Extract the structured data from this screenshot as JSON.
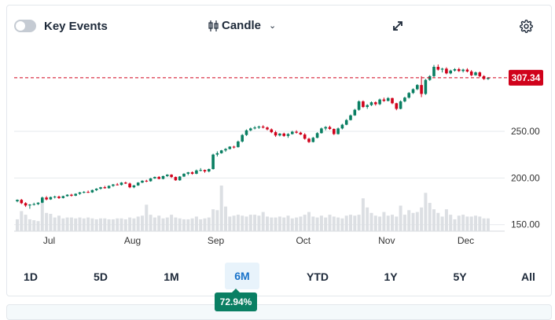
{
  "toolbar": {
    "key_events_label": "Key Events",
    "chart_type_label": "Candle",
    "expand_icon": "expand-icon",
    "settings_icon": "gear-icon"
  },
  "ranges": [
    "1D",
    "5D",
    "1M",
    "6M",
    "YTD",
    "1Y",
    "5Y",
    "All"
  ],
  "active_range": "6M",
  "change_badge": "72.94%",
  "colors": {
    "up": "#0a7f63",
    "down": "#d0021b",
    "grid": "#e6e9ed",
    "volume": "#dcdfe3",
    "price_line": "#d0021b"
  },
  "chart_data": {
    "type": "candlestick",
    "title": "",
    "current_price": 307.34,
    "current_price_label": "307.34",
    "y_ticks": [
      150,
      200,
      250
    ],
    "y_tick_labels": [
      "150.00",
      "200.00",
      "250.00"
    ],
    "ylim": [
      143,
      335
    ],
    "x_labels": [
      "Jul",
      "Aug",
      "Sep",
      "Oct",
      "Nov",
      "Dec"
    ],
    "x_label_positions": [
      5,
      25,
      45,
      66,
      86,
      105
    ],
    "candles": [
      [
        175.0,
        177.0,
        174.0,
        176.5
      ],
      [
        176.5,
        177.5,
        172.0,
        173.0
      ],
      [
        173.0,
        174.0,
        169.0,
        170.5
      ],
      [
        170.5,
        172.0,
        167.0,
        171.5
      ],
      [
        171.5,
        173.5,
        170.5,
        172.0
      ],
      [
        172.0,
        174.0,
        171.0,
        173.5
      ],
      [
        173.5,
        180.0,
        173.0,
        179.0
      ],
      [
        179.0,
        180.5,
        176.0,
        177.0
      ],
      [
        177.0,
        180.0,
        176.5,
        179.5
      ],
      [
        179.5,
        181.0,
        178.0,
        180.0
      ],
      [
        180.0,
        181.0,
        177.5,
        178.5
      ],
      [
        178.5,
        181.0,
        178.0,
        180.5
      ],
      [
        180.5,
        182.5,
        180.0,
        182.0
      ],
      [
        182.0,
        183.0,
        180.0,
        181.0
      ],
      [
        181.0,
        183.5,
        180.5,
        183.0
      ],
      [
        183.0,
        185.0,
        182.0,
        184.5
      ],
      [
        184.5,
        186.0,
        183.5,
        185.0
      ],
      [
        185.0,
        186.5,
        184.0,
        184.5
      ],
      [
        184.5,
        187.5,
        184.0,
        187.0
      ],
      [
        187.0,
        189.0,
        186.0,
        188.5
      ],
      [
        188.5,
        190.5,
        187.5,
        190.0
      ],
      [
        190.0,
        191.5,
        188.5,
        189.0
      ],
      [
        189.0,
        192.0,
        188.5,
        191.5
      ],
      [
        191.5,
        193.5,
        190.5,
        193.0
      ],
      [
        193.0,
        194.5,
        192.0,
        192.5
      ],
      [
        192.5,
        195.5,
        192.0,
        195.0
      ],
      [
        195.0,
        196.0,
        193.5,
        194.0
      ],
      [
        194.0,
        195.0,
        189.0,
        190.0
      ],
      [
        190.0,
        192.5,
        189.0,
        192.0
      ],
      [
        192.0,
        195.5,
        191.5,
        195.0
      ],
      [
        195.0,
        197.5,
        194.5,
        197.0
      ],
      [
        197.0,
        198.0,
        195.5,
        196.5
      ],
      [
        196.5,
        200.0,
        196.0,
        199.5
      ],
      [
        199.5,
        201.5,
        199.0,
        201.0
      ],
      [
        201.0,
        202.0,
        198.5,
        199.0
      ],
      [
        199.0,
        202.5,
        198.5,
        202.0
      ],
      [
        202.0,
        204.0,
        201.0,
        203.5
      ],
      [
        203.5,
        204.0,
        200.0,
        201.0
      ],
      [
        201.0,
        201.5,
        197.0,
        197.5
      ],
      [
        197.5,
        202.0,
        197.0,
        201.5
      ],
      [
        201.5,
        205.0,
        201.0,
        204.5
      ],
      [
        204.5,
        206.5,
        203.0,
        206.0
      ],
      [
        206.0,
        207.0,
        203.5,
        204.5
      ],
      [
        204.5,
        209.0,
        204.0,
        208.0
      ],
      [
        208.0,
        210.5,
        207.0,
        208.5
      ],
      [
        208.5,
        209.0,
        205.5,
        207.0
      ],
      [
        207.0,
        210.0,
        206.0,
        209.5
      ],
      [
        209.5,
        226.0,
        209.0,
        225.0
      ],
      [
        225.0,
        228.5,
        223.0,
        226.5
      ],
      [
        226.5,
        230.0,
        226.0,
        229.5
      ],
      [
        229.5,
        232.0,
        228.0,
        231.0
      ],
      [
        231.0,
        234.0,
        230.5,
        233.5
      ],
      [
        233.5,
        234.5,
        231.5,
        233.0
      ],
      [
        233.0,
        240.0,
        232.5,
        239.0
      ],
      [
        239.0,
        247.0,
        238.0,
        246.0
      ],
      [
        246.0,
        252.0,
        245.0,
        251.0
      ],
      [
        251.0,
        254.0,
        250.0,
        253.0
      ],
      [
        253.0,
        255.5,
        252.0,
        254.0
      ],
      [
        254.0,
        256.0,
        252.5,
        255.0
      ],
      [
        255.0,
        256.5,
        253.0,
        254.0
      ],
      [
        254.0,
        255.0,
        251.0,
        252.0
      ],
      [
        252.0,
        253.0,
        248.0,
        249.0
      ],
      [
        249.0,
        250.5,
        244.0,
        245.5
      ],
      [
        245.5,
        248.0,
        244.5,
        247.5
      ],
      [
        247.5,
        248.5,
        244.0,
        245.0
      ],
      [
        245.0,
        248.0,
        243.0,
        247.0
      ],
      [
        247.0,
        250.5,
        246.5,
        249.5
      ],
      [
        249.5,
        251.0,
        247.5,
        248.5
      ],
      [
        248.5,
        249.5,
        246.0,
        246.5
      ],
      [
        246.5,
        248.0,
        241.0,
        242.0
      ],
      [
        242.0,
        243.0,
        237.5,
        238.5
      ],
      [
        238.5,
        244.0,
        238.0,
        243.0
      ],
      [
        243.0,
        249.0,
        242.5,
        248.0
      ],
      [
        248.0,
        254.0,
        247.5,
        253.0
      ],
      [
        253.0,
        255.5,
        251.0,
        254.5
      ],
      [
        254.5,
        256.0,
        251.5,
        252.5
      ],
      [
        252.5,
        253.0,
        246.0,
        247.0
      ],
      [
        247.0,
        254.0,
        246.5,
        253.0
      ],
      [
        253.0,
        258.0,
        252.0,
        257.0
      ],
      [
        257.0,
        263.0,
        256.5,
        262.0
      ],
      [
        262.0,
        268.0,
        261.5,
        267.0
      ],
      [
        267.0,
        274.0,
        266.5,
        273.0
      ],
      [
        273.0,
        283.0,
        272.0,
        282.0
      ],
      [
        282.0,
        283.0,
        275.0,
        276.0
      ],
      [
        276.0,
        279.0,
        274.0,
        278.0
      ],
      [
        278.0,
        282.0,
        277.0,
        281.0
      ],
      [
        281.0,
        282.0,
        277.5,
        279.0
      ],
      [
        279.0,
        285.0,
        278.0,
        284.0
      ],
      [
        284.0,
        286.0,
        281.5,
        282.5
      ],
      [
        282.5,
        286.5,
        282.0,
        285.5
      ],
      [
        285.5,
        286.0,
        279.0,
        280.0
      ],
      [
        280.0,
        280.5,
        272.5,
        274.0
      ],
      [
        274.0,
        283.0,
        273.5,
        282.0
      ],
      [
        282.0,
        287.0,
        281.0,
        286.0
      ],
      [
        286.0,
        292.0,
        285.0,
        291.0
      ],
      [
        291.0,
        296.0,
        290.0,
        295.0
      ],
      [
        295.0,
        300.5,
        294.0,
        299.5
      ],
      [
        299.5,
        309.0,
        286.5,
        290.0
      ],
      [
        290.0,
        306.0,
        289.0,
        305.0
      ],
      [
        305.0,
        310.0,
        304.0,
        309.0
      ],
      [
        309.0,
        321.0,
        308.0,
        319.0
      ],
      [
        319.0,
        321.5,
        315.0,
        316.0
      ],
      [
        316.0,
        318.0,
        313.0,
        317.0
      ],
      [
        317.0,
        318.5,
        311.0,
        312.0
      ],
      [
        312.0,
        316.0,
        311.0,
        315.0
      ],
      [
        315.0,
        317.5,
        314.0,
        316.5
      ],
      [
        316.5,
        318.0,
        313.5,
        314.5
      ],
      [
        314.5,
        317.0,
        313.0,
        316.0
      ],
      [
        316.0,
        317.5,
        313.0,
        314.0
      ],
      [
        314.0,
        315.5,
        309.0,
        310.0
      ],
      [
        310.0,
        314.0,
        309.5,
        313.0
      ],
      [
        313.0,
        314.0,
        308.0,
        309.0
      ],
      [
        309.0,
        310.0,
        305.0,
        306.0
      ],
      [
        306.0,
        308.0,
        305.0,
        307.34
      ]
    ],
    "volumes": [
      26,
      44,
      36,
      26,
      24,
      22,
      62,
      40,
      38,
      30,
      34,
      28,
      30,
      30,
      28,
      30,
      28,
      30,
      28,
      26,
      28,
      28,
      26,
      26,
      28,
      28,
      26,
      30,
      28,
      32,
      34,
      58,
      36,
      30,
      34,
      28,
      30,
      36,
      30,
      28,
      26,
      26,
      28,
      32,
      26,
      28,
      30,
      48,
      46,
      100,
      54,
      32,
      34,
      36,
      34,
      32,
      36,
      36,
      34,
      42,
      32,
      30,
      30,
      32,
      30,
      34,
      28,
      30,
      32,
      36,
      42,
      32,
      30,
      34,
      30,
      36,
      32,
      30,
      28,
      34,
      36,
      34,
      36,
      72,
      52,
      40,
      34,
      32,
      42,
      34,
      36,
      32,
      56,
      36,
      46,
      40,
      42,
      52,
      84,
      62,
      48,
      40,
      32,
      48,
      36,
      26,
      34,
      36,
      32,
      32,
      34,
      32,
      28,
      28
    ]
  }
}
